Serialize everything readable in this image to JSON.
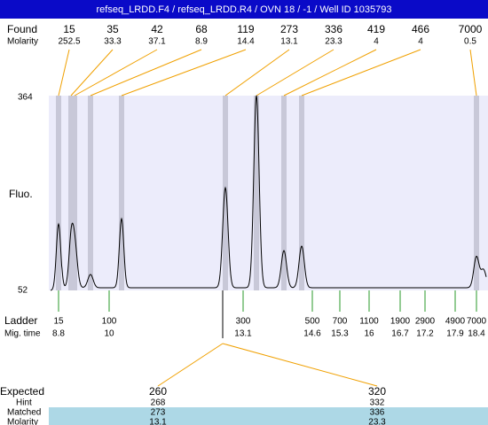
{
  "header": {
    "title": "refseq_LRDD.F4 / refseq_LRDD.R4 / OVN 18 / -1 / Well ID 1035793"
  },
  "found": {
    "label": "Found",
    "sizes": [
      15,
      35,
      42,
      68,
      119,
      273,
      336,
      419,
      466,
      7000
    ],
    "molarity_label": "Molarity",
    "molarities": [
      252.5,
      33.3,
      37.1,
      8.9,
      14.4,
      13.1,
      23.3,
      4,
      4,
      0.5
    ]
  },
  "y_axis": {
    "label": "Fluo.",
    "max": 364,
    "min": 52
  },
  "ladder": {
    "label": "Ladder",
    "sizes": [
      15,
      100,
      300,
      500,
      700,
      1100,
      1900,
      2900,
      4900,
      7000
    ],
    "mig_time_label": "Mig. time",
    "mig_times": [
      8.8,
      10,
      13.1,
      14.6,
      15.3,
      16,
      16.7,
      17.2,
      17.9,
      18.4
    ]
  },
  "expected": {
    "label": "Expected",
    "values": [
      260,
      320
    ],
    "hint_label": "Hint",
    "hints": [
      268,
      332
    ],
    "matched_label": "Matched",
    "matched": [
      273,
      336
    ],
    "molarity_label": "Molarity",
    "molarities": [
      13.1,
      23.3
    ]
  }
}
